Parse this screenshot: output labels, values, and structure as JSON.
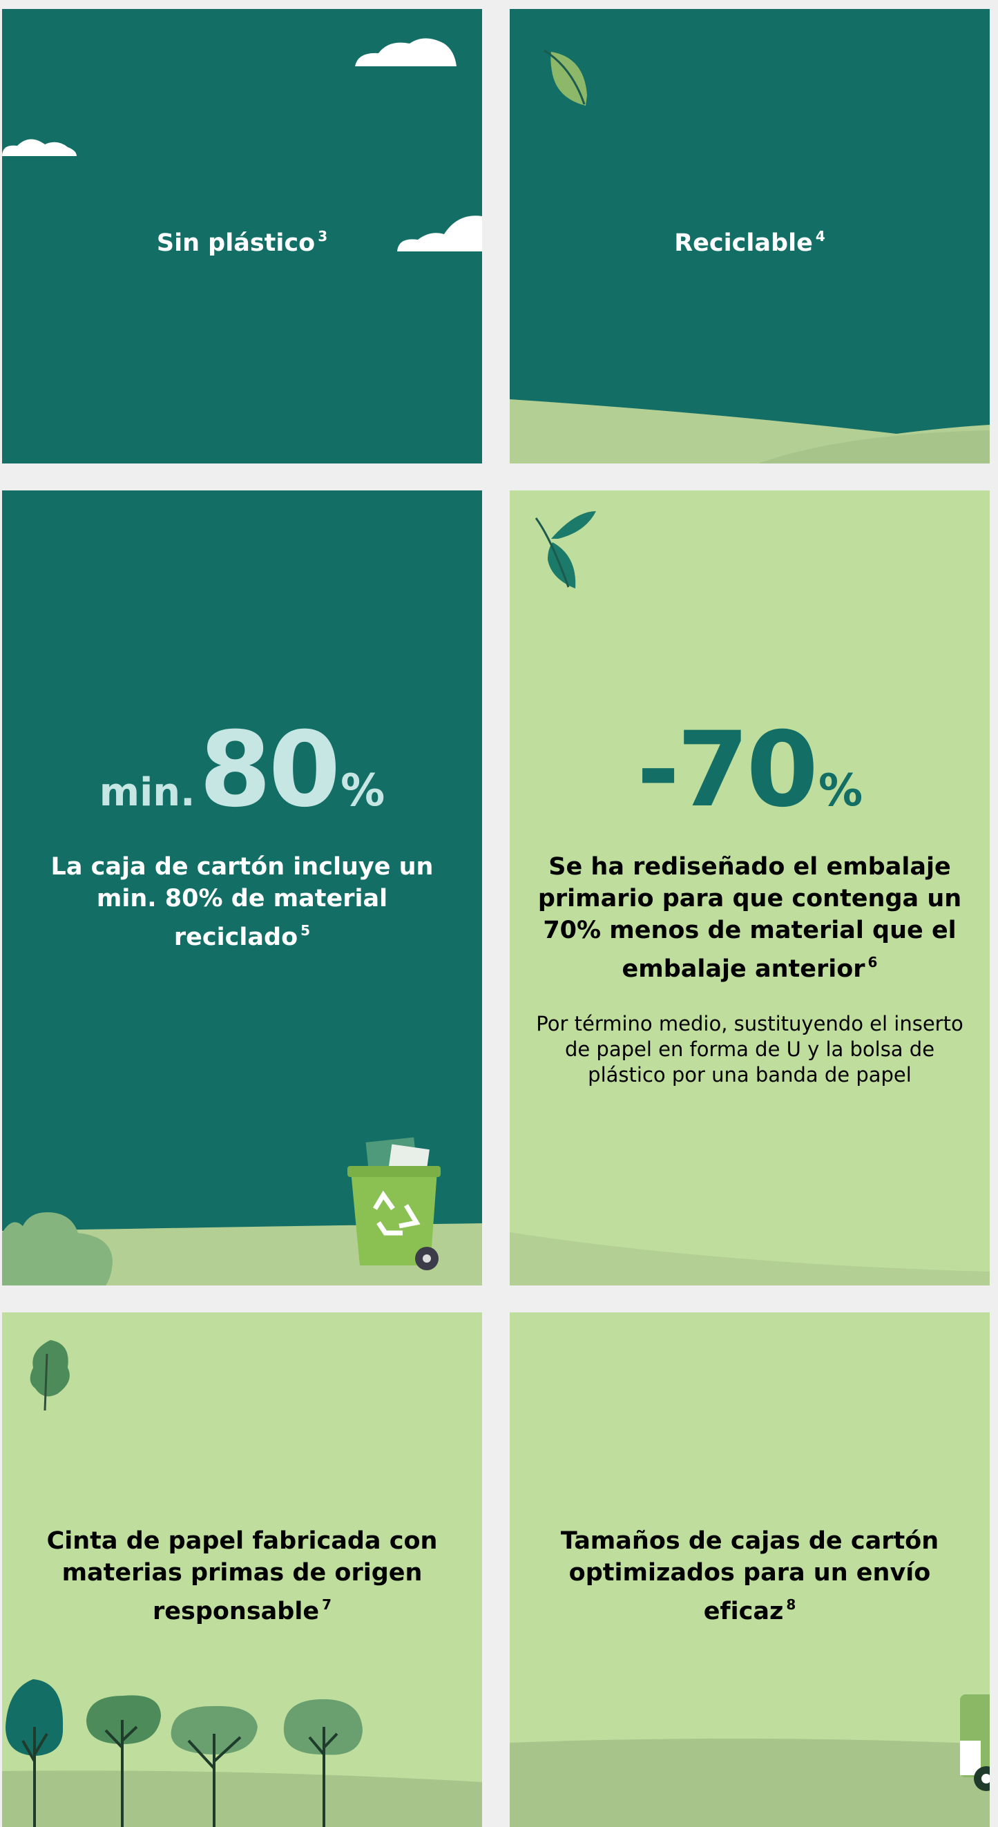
{
  "cards": [
    {
      "title": "Sin plástico",
      "note": "3"
    },
    {
      "title": "Reciclable",
      "note": "4"
    },
    {
      "prefix": "min.",
      "figure": "80",
      "unit": "%",
      "title": "La caja de cartón incluye un min. 80% de material reciclado",
      "note": "5"
    },
    {
      "figure": "-70",
      "unit": "%",
      "title": "Se ha rediseñado el embalaje primario para que contenga un 70% menos de material que el embalaje anterior",
      "note": "6",
      "body": "Por término medio, sustituyendo el inserto de papel en forma de U y la bolsa de plástico por una banda de papel"
    },
    {
      "title": "Cinta de papel fabricada con materias primas de origen responsable",
      "note": "7"
    },
    {
      "title": "Tamaños de cajas de cartón optimizados para un envío eficaz",
      "note": "8"
    }
  ]
}
